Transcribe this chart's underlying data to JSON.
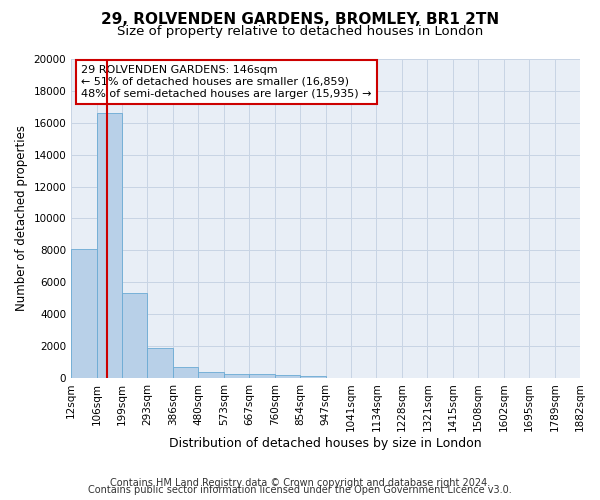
{
  "title1": "29, ROLVENDEN GARDENS, BROMLEY, BR1 2TN",
  "title2": "Size of property relative to detached houses in London",
  "xlabel": "Distribution of detached houses by size in London",
  "ylabel": "Number of detached properties",
  "bar_values": [
    8100,
    16600,
    5300,
    1850,
    680,
    350,
    270,
    210,
    190,
    100,
    0,
    0,
    0,
    0,
    0,
    0,
    0,
    0,
    0,
    0
  ],
  "bar_labels": [
    "12sqm",
    "106sqm",
    "199sqm",
    "293sqm",
    "386sqm",
    "480sqm",
    "573sqm",
    "667sqm",
    "760sqm",
    "854sqm",
    "947sqm",
    "1041sqm",
    "1134sqm",
    "1228sqm",
    "1321sqm",
    "1415sqm",
    "1508sqm",
    "1602sqm",
    "1695sqm",
    "1789sqm",
    "1882sqm"
  ],
  "bar_color": "#b8d0e8",
  "bar_edge_color": "#6aaad4",
  "grid_color": "#c8d4e4",
  "background_color": "#e8eef6",
  "vline_color": "#cc0000",
  "annotation_text": "29 ROLVENDEN GARDENS: 146sqm\n← 51% of detached houses are smaller (16,859)\n48% of semi-detached houses are larger (15,935) →",
  "annotation_box_color": "#cc0000",
  "ylim": [
    0,
    20000
  ],
  "yticks": [
    0,
    2000,
    4000,
    6000,
    8000,
    10000,
    12000,
    14000,
    16000,
    18000,
    20000
  ],
  "footer1": "Contains HM Land Registry data © Crown copyright and database right 2024.",
  "footer2": "Contains public sector information licensed under the Open Government Licence v3.0.",
  "title1_fontsize": 11,
  "title2_fontsize": 9.5,
  "xlabel_fontsize": 9,
  "ylabel_fontsize": 8.5,
  "tick_fontsize": 7.5,
  "annotation_fontsize": 8,
  "footer_fontsize": 7
}
